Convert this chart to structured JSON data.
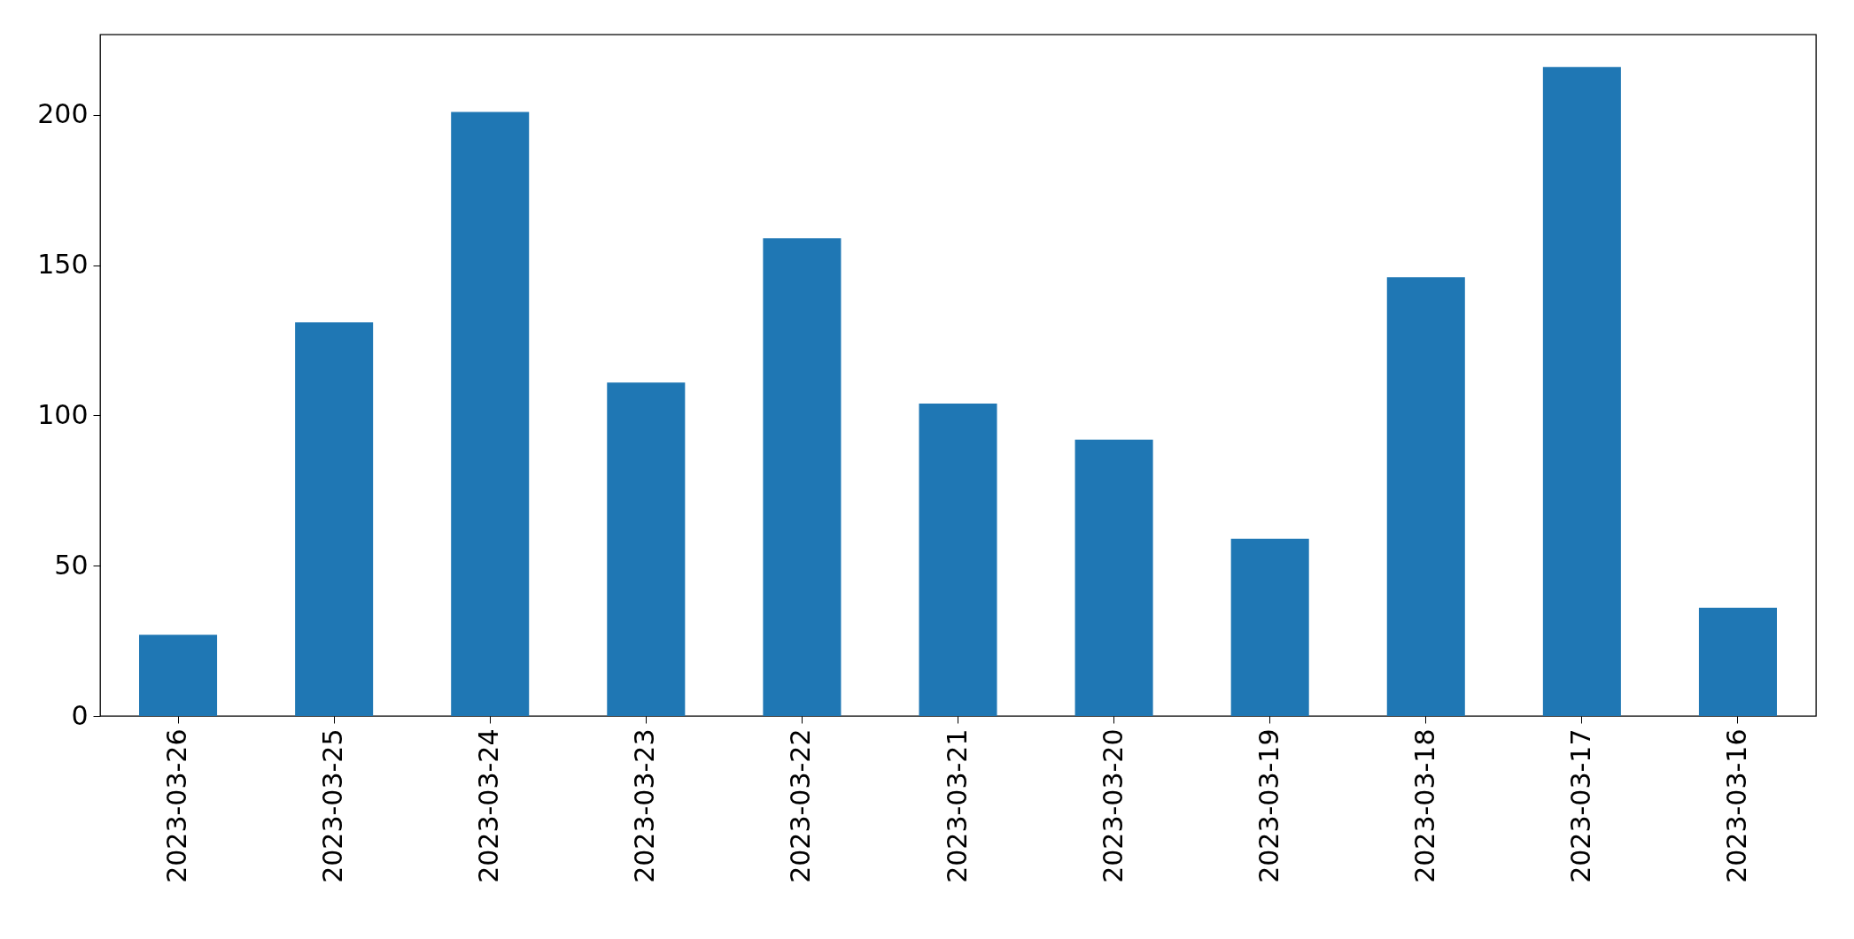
{
  "chart_data": {
    "type": "bar",
    "categories": [
      "2023-03-26",
      "2023-03-25",
      "2023-03-24",
      "2023-03-23",
      "2023-03-22",
      "2023-03-21",
      "2023-03-20",
      "2023-03-19",
      "2023-03-18",
      "2023-03-17",
      "2023-03-16"
    ],
    "values": [
      27,
      131,
      201,
      111,
      159,
      104,
      92,
      59,
      146,
      216,
      36
    ],
    "color": "#1f77b4",
    "ylim": [
      0,
      226.8
    ],
    "yticks": [
      0,
      50,
      100,
      150,
      200
    ],
    "grid": false
  }
}
